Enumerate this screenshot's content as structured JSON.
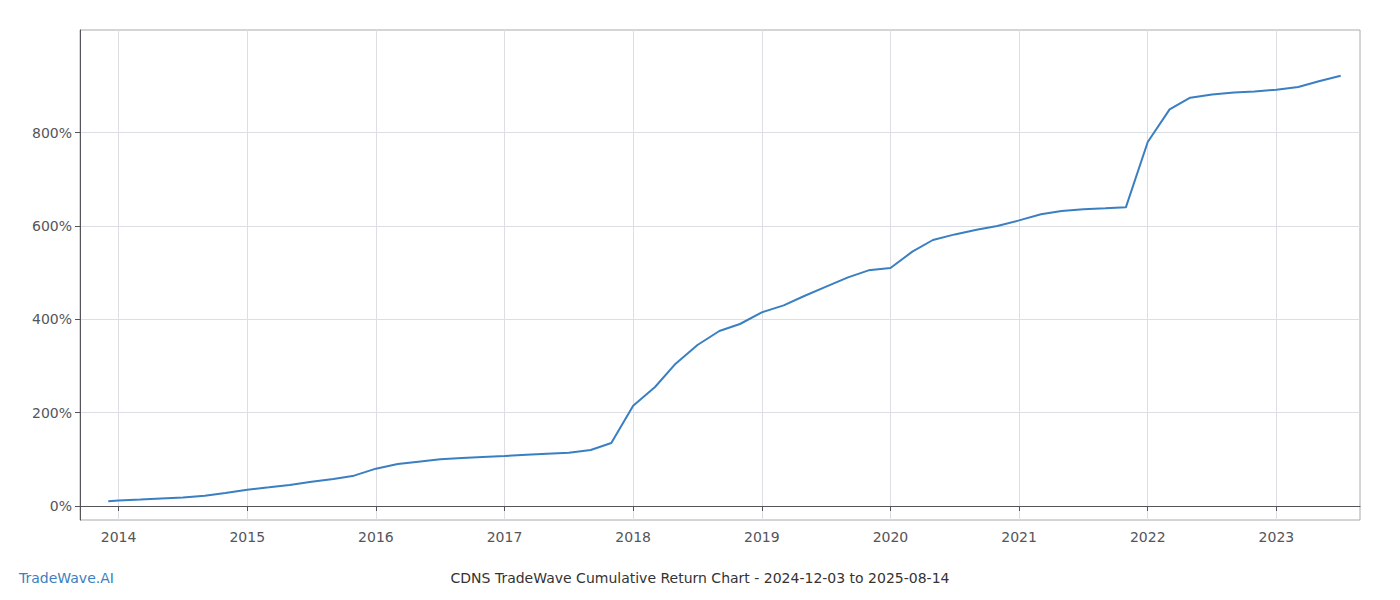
{
  "chart_data": {
    "type": "line",
    "title": "CDNS TradeWave Cumulative Return Chart - 2024-12-03 to 2025-08-14",
    "annotations": [
      {
        "text": "TradeWave.AI",
        "color": "#3a7fc1"
      }
    ],
    "color": "#3a7fc1",
    "grid": true,
    "x": [
      2013.92,
      2014.0,
      2014.17,
      2014.33,
      2014.5,
      2014.67,
      2014.83,
      2015.0,
      2015.17,
      2015.33,
      2015.5,
      2015.67,
      2015.83,
      2016.0,
      2016.17,
      2016.33,
      2016.5,
      2016.67,
      2016.83,
      2017.0,
      2017.17,
      2017.33,
      2017.5,
      2017.67,
      2017.83,
      2018.0,
      2018.17,
      2018.33,
      2018.5,
      2018.67,
      2018.83,
      2019.0,
      2019.17,
      2019.33,
      2019.5,
      2019.67,
      2019.83,
      2020.0,
      2020.17,
      2020.33,
      2020.5,
      2020.67,
      2020.83,
      2021.0,
      2021.17,
      2021.33,
      2021.5,
      2021.67,
      2021.83,
      2022.0,
      2022.17,
      2022.33,
      2022.5,
      2022.67,
      2022.83,
      2023.0,
      2023.17,
      2023.33,
      2023.5
    ],
    "values": [
      10,
      12,
      14,
      16,
      18,
      22,
      28,
      35,
      40,
      45,
      52,
      58,
      65,
      80,
      90,
      95,
      100,
      103,
      105,
      107,
      110,
      112,
      114,
      120,
      135,
      215,
      255,
      305,
      345,
      375,
      390,
      415,
      430,
      450,
      470,
      490,
      505,
      510,
      545,
      570,
      582,
      592,
      600,
      612,
      625,
      632,
      636,
      638,
      640,
      780,
      850,
      875,
      882,
      886,
      888,
      892,
      898,
      910,
      922
    ],
    "xlim": [
      2013.7,
      2023.65
    ],
    "xticks": [
      2014,
      2015,
      2016,
      2017,
      2018,
      2019,
      2020,
      2021,
      2022,
      2023
    ],
    "ylim": [
      -30,
      1020
    ],
    "yticks": [
      {
        "value": 0,
        "label": "0%"
      },
      {
        "value": 200,
        "label": "200%"
      },
      {
        "value": 400,
        "label": "400%"
      },
      {
        "value": 600,
        "label": "600%"
      },
      {
        "value": 800,
        "label": "800%"
      }
    ]
  }
}
